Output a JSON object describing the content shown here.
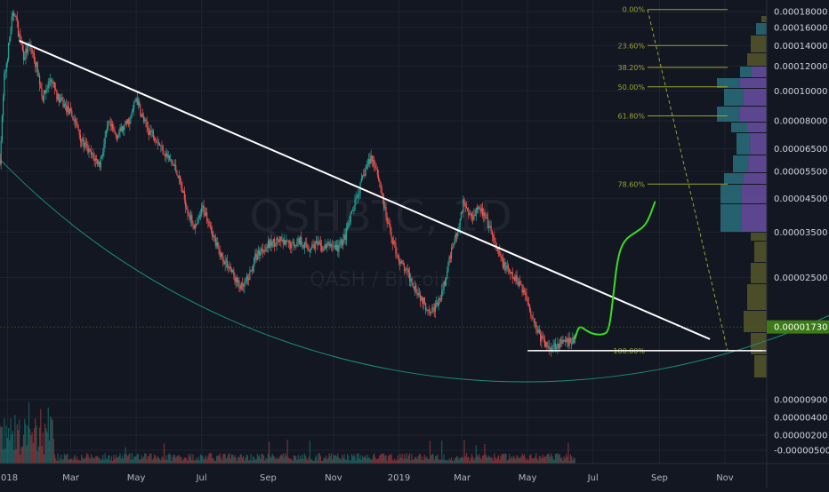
{
  "chart_data": {
    "type": "candlestick",
    "symbol": "QSHBTC",
    "interval": "1D",
    "watermark_symbol": "QSHBTC, 1D",
    "watermark_name": "QASH / Bitcoin",
    "y_scale": "log",
    "ylim": [
      1.15e-05,
      0.00019
    ],
    "y_ticks": [
      {
        "label": "0.00018000",
        "value": 0.00018
      },
      {
        "label": "0.00016000",
        "value": 0.00016
      },
      {
        "label": "0.00014000",
        "value": 0.00014
      },
      {
        "label": "0.00012000",
        "value": 0.00012
      },
      {
        "label": "0.00010000",
        "value": 0.0001
      },
      {
        "label": "0.00008000",
        "value": 8e-05
      },
      {
        "label": "0.00006500",
        "value": 6.5e-05
      },
      {
        "label": "0.00005500",
        "value": 5.5e-05
      },
      {
        "label": "0.00004500",
        "value": 4.5e-05
      },
      {
        "label": "0.00003500",
        "value": 3.5e-05
      },
      {
        "label": "0.00002500",
        "value": 2.5e-05
      }
    ],
    "y_ticks_lower": [
      {
        "label": "0.00000900"
      },
      {
        "label": "0.00000400"
      },
      {
        "label": "0.00000200"
      },
      {
        "label": "-0.00000500"
      }
    ],
    "x_ticks": [
      {
        "label": "018",
        "date": "2018-01-01"
      },
      {
        "label": "Mar",
        "date": "2018-03-01"
      },
      {
        "label": "May",
        "date": "2018-05-01"
      },
      {
        "label": "Jul",
        "date": "2018-07-01"
      },
      {
        "label": "Sep",
        "date": "2018-09-01"
      },
      {
        "label": "Nov",
        "date": "2018-11-01"
      },
      {
        "label": "2019",
        "date": "2019-01-01"
      },
      {
        "label": "Mar",
        "date": "2019-03-01"
      },
      {
        "label": "May",
        "date": "2019-05-01"
      },
      {
        "label": "Jul",
        "date": "2019-07-01"
      },
      {
        "label": "Sep",
        "date": "2019-09-01"
      },
      {
        "label": "Nov",
        "date": "2019-11-01"
      }
    ],
    "xlim": [
      "2017-12-25",
      "2019-12-10"
    ],
    "price_path": [
      [
        "2017-12-25",
        6e-05
      ],
      [
        "2017-12-29",
        0.00011
      ],
      [
        "2018-01-01",
        0.00013
      ],
      [
        "2018-01-05",
        0.00017
      ],
      [
        "2018-01-08",
        0.00018
      ],
      [
        "2018-01-11",
        0.000155
      ],
      [
        "2018-01-16",
        0.00013
      ],
      [
        "2018-01-22",
        0.00014
      ],
      [
        "2018-01-28",
        0.00012
      ],
      [
        "2018-02-03",
        9.5e-05
      ],
      [
        "2018-02-10",
        0.00011
      ],
      [
        "2018-02-17",
        9.5e-05
      ],
      [
        "2018-02-25",
        8.8e-05
      ],
      [
        "2018-03-05",
        8e-05
      ],
      [
        "2018-03-12",
        6.8e-05
      ],
      [
        "2018-03-20",
        6.2e-05
      ],
      [
        "2018-03-28",
        5.8e-05
      ],
      [
        "2018-04-05",
        7.8e-05
      ],
      [
        "2018-04-12",
        7.2e-05
      ],
      [
        "2018-04-18",
        7.5e-05
      ],
      [
        "2018-04-26",
        8.2e-05
      ],
      [
        "2018-05-01",
        9.5e-05
      ],
      [
        "2018-05-06",
        8.3e-05
      ],
      [
        "2018-05-12",
        7.5e-05
      ],
      [
        "2018-05-18",
        7.2e-05
      ],
      [
        "2018-05-24",
        6.6e-05
      ],
      [
        "2018-06-01",
        6e-05
      ],
      [
        "2018-06-08",
        5.5e-05
      ],
      [
        "2018-06-14",
        4.6e-05
      ],
      [
        "2018-06-20",
        3.9e-05
      ],
      [
        "2018-06-26",
        3.6e-05
      ],
      [
        "2018-07-02",
        4.2e-05
      ],
      [
        "2018-07-08",
        3.8e-05
      ],
      [
        "2018-07-14",
        3.2e-05
      ],
      [
        "2018-07-20",
        2.9e-05
      ],
      [
        "2018-07-27",
        2.7e-05
      ],
      [
        "2018-08-03",
        2.4e-05
      ],
      [
        "2018-08-08",
        2.3e-05
      ],
      [
        "2018-08-14",
        2.5e-05
      ],
      [
        "2018-08-20",
        2.9e-05
      ],
      [
        "2018-08-27",
        3.1e-05
      ],
      [
        "2018-09-03",
        3.2e-05
      ],
      [
        "2018-09-10",
        3.3e-05
      ],
      [
        "2018-09-17",
        3.2e-05
      ],
      [
        "2018-09-24",
        3.2e-05
      ],
      [
        "2018-10-01",
        3.3e-05
      ],
      [
        "2018-10-08",
        3.1e-05
      ],
      [
        "2018-10-15",
        3.2e-05
      ],
      [
        "2018-10-22",
        3.1e-05
      ],
      [
        "2018-10-29",
        3.2e-05
      ],
      [
        "2018-11-05",
        3.1e-05
      ],
      [
        "2018-11-12",
        3.4e-05
      ],
      [
        "2018-11-18",
        4e-05
      ],
      [
        "2018-11-25",
        4.8e-05
      ],
      [
        "2018-12-01",
        5.6e-05
      ],
      [
        "2018-12-06",
        6.1e-05
      ],
      [
        "2018-12-10",
        5.8e-05
      ],
      [
        "2018-12-15",
        4.9e-05
      ],
      [
        "2018-12-20",
        3.9e-05
      ],
      [
        "2018-12-26",
        3.3e-05
      ],
      [
        "2019-01-02",
        2.8e-05
      ],
      [
        "2019-01-08",
        2.6e-05
      ],
      [
        "2019-01-14",
        2.4e-05
      ],
      [
        "2019-01-20",
        2.2e-05
      ],
      [
        "2019-01-27",
        2e-05
      ],
      [
        "2019-02-03",
        1.98e-05
      ],
      [
        "2019-02-08",
        2.1e-05
      ],
      [
        "2019-02-14",
        2.5e-05
      ],
      [
        "2019-02-20",
        3.2e-05
      ],
      [
        "2019-02-26",
        3.6e-05
      ],
      [
        "2019-03-02",
        4.4e-05
      ],
      [
        "2019-03-06",
        4.1e-05
      ],
      [
        "2019-03-10",
        3.9e-05
      ],
      [
        "2019-03-16",
        4.3e-05
      ],
      [
        "2019-03-22",
        3.9e-05
      ],
      [
        "2019-03-28",
        3.5e-05
      ],
      [
        "2019-04-03",
        3e-05
      ],
      [
        "2019-04-10",
        2.7e-05
      ],
      [
        "2019-04-17",
        2.5e-05
      ],
      [
        "2019-04-24",
        2.4e-05
      ],
      [
        "2019-05-01",
        2.1e-05
      ],
      [
        "2019-05-07",
        1.8e-05
      ],
      [
        "2019-05-13",
        1.6e-05
      ],
      [
        "2019-05-20",
        1.48e-05
      ],
      [
        "2019-05-27",
        1.52e-05
      ],
      [
        "2019-06-03",
        1.53e-05
      ],
      [
        "2019-06-10",
        1.55e-05
      ],
      [
        "2019-06-14",
        1.58e-05
      ]
    ],
    "last_price_label": "0.00001730",
    "last_price": 1.73e-05,
    "fibonacci_retracement": {
      "levels": [
        {
          "label": "0.00%",
          "value": 0.000183
        },
        {
          "label": "23.60%",
          "value": 0.00014
        },
        {
          "label": "38.20%",
          "value": 0.000119
        },
        {
          "label": "50.00%",
          "value": 0.000103
        },
        {
          "label": "61.80%",
          "value": 8.3e-05
        },
        {
          "label": "78.60%",
          "value": 5e-05
        },
        {
          "label": "100.00%",
          "value": 1.45e-05
        }
      ],
      "color": "#9aa32f"
    },
    "trendline": {
      "start": [
        "2018-01-12",
        0.000145
      ],
      "end": [
        "2019-10-18",
        1.58e-05
      ],
      "color": "#ffffff"
    },
    "support_line": {
      "start": [
        "2019-05-01",
        1.45e-05
      ],
      "end": [
        "2019-12-06",
        1.45e-05
      ],
      "color": "#ffffff"
    },
    "projection_path": {
      "color": "#3ddc1f",
      "points": [
        [
          "2019-06-14",
          1.58e-05
        ],
        [
          "2019-06-18",
          1.75e-05
        ],
        [
          "2019-06-24",
          1.69e-05
        ],
        [
          "2019-07-01",
          1.64e-05
        ],
        [
          "2019-07-10",
          1.63e-05
        ],
        [
          "2019-07-16",
          1.68e-05
        ],
        [
          "2019-07-20",
          2.2e-05
        ],
        [
          "2019-07-24",
          2.9e-05
        ],
        [
          "2019-07-30",
          3.3e-05
        ],
        [
          "2019-08-10",
          3.5e-05
        ],
        [
          "2019-08-20",
          3.7e-05
        ],
        [
          "2019-08-28",
          4.4e-05
        ]
      ]
    },
    "colors": {
      "background": "#131722",
      "grid": "#1e2330",
      "up": "#26a69a",
      "down": "#ef5350",
      "arc": "#1a8f7c",
      "price_tag": "#3b7a16",
      "volume_profile_teal": "#2a6f7c",
      "volume_profile_purple": "#6b4fa3",
      "volume_profile_olive": "#5a5a2a"
    }
  }
}
